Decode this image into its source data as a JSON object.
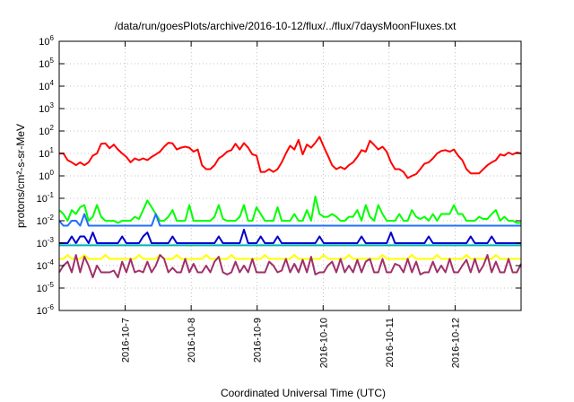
{
  "chart_data": {
    "type": "line",
    "title": "/data/run/goesPlots/archive/2016-10-12/flux/../flux/7daysMoonFluxes.txt",
    "xlabel": "Coordinated Universal Time (UTC)",
    "ylabel": "protons/cm²-s-sr-MeV",
    "yscale": "log",
    "ylim": [
      1e-06,
      1000000.0
    ],
    "xlim": [
      0,
      7
    ],
    "x_unit": "days from 2016-10-06 00:00 UTC",
    "grid": true,
    "legend": "none",
    "x_ticks": [
      {
        "x": 1,
        "label": "2016-10-7"
      },
      {
        "x": 2,
        "label": "2016-10-8"
      },
      {
        "x": 3,
        "label": "2016-10-9"
      },
      {
        "x": 4,
        "label": "2016-10-10"
      },
      {
        "x": 5,
        "label": "2016-10-11"
      },
      {
        "x": 6,
        "label": "2016-10-12"
      }
    ],
    "y_ticks": [
      {
        "v": 1e-06,
        "base": "10",
        "exp": "-6"
      },
      {
        "v": 1e-05,
        "base": "10",
        "exp": "-5"
      },
      {
        "v": 0.0001,
        "base": "10",
        "exp": "-4"
      },
      {
        "v": 0.001,
        "base": "10",
        "exp": "-3"
      },
      {
        "v": 0.01,
        "base": "10",
        "exp": "-2"
      },
      {
        "v": 0.1,
        "base": "10",
        "exp": "-1"
      },
      {
        "v": 1,
        "base": "10",
        "exp": "0"
      },
      {
        "v": 10,
        "base": "10",
        "exp": "1"
      },
      {
        "v": 100,
        "base": "10",
        "exp": "2"
      },
      {
        "v": 1000,
        "base": "10",
        "exp": "3"
      },
      {
        "v": 10000,
        "base": "10",
        "exp": "4"
      },
      {
        "v": 100000,
        "base": "10",
        "exp": "5"
      },
      {
        "v": 1000000,
        "base": "10",
        "exp": "6"
      }
    ],
    "series": [
      {
        "color": "#ff0000",
        "values": [
          10.0,
          10.0,
          5.0,
          4.0,
          3.0,
          4.0,
          3.0,
          4.0,
          8.0,
          10.0,
          27.0,
          28.0,
          17.0,
          25.0,
          15.0,
          10.0,
          7.0,
          4.0,
          6.0,
          5.0,
          6.0,
          5.0,
          7.0,
          9.0,
          12.0,
          20.0,
          30.0,
          28.0,
          15.0,
          18.0,
          20.0,
          18.0,
          12.0,
          15.0,
          3.0,
          2.0,
          2.0,
          3.0,
          6.0,
          8.0,
          12.0,
          14.0,
          27.0,
          15.0,
          29.0,
          18.0,
          9.0,
          8.0,
          1.5,
          1.5,
          2.0,
          1.5,
          2.0,
          4.0,
          10.0,
          22.0,
          15.0,
          40.0,
          9.0,
          25.0,
          18.0,
          30.0,
          55.0,
          20.0,
          8.0,
          3.0,
          2.0,
          2.5,
          2.0,
          3.0,
          4.0,
          7.0,
          14.0,
          12.0,
          37.0,
          24.0,
          15.0,
          20.0,
          12.0,
          4.0,
          2.0,
          2.0,
          1.5,
          0.8,
          1.0,
          1.2,
          2.0,
          3.5,
          4.0,
          6.0,
          10.0,
          13.0,
          14.0,
          12.0,
          15.0,
          8.0,
          5.0,
          2.0,
          1.3,
          1.3,
          1.3,
          2.0,
          3.0,
          4.0,
          5.0,
          9.0,
          8.0,
          11.0,
          9.0,
          11.0,
          10.0
        ]
      },
      {
        "color": "#00ff00",
        "values": [
          0.03,
          0.02,
          0.01,
          0.03,
          0.02,
          0.04,
          0.05,
          0.01,
          0.015,
          0.05,
          0.015,
          0.01,
          0.01,
          0.01,
          0.008,
          0.01,
          0.01,
          0.01,
          0.015,
          0.012,
          0.03,
          0.08,
          0.04,
          0.02,
          0.01,
          0.01,
          0.015,
          0.03,
          0.01,
          0.01,
          0.01,
          0.05,
          0.01,
          0.01,
          0.01,
          0.01,
          0.01,
          0.015,
          0.05,
          0.012,
          0.01,
          0.01,
          0.01,
          0.015,
          0.05,
          0.01,
          0.01,
          0.04,
          0.02,
          0.01,
          0.01,
          0.01,
          0.04,
          0.01,
          0.01,
          0.01,
          0.02,
          0.01,
          0.01,
          0.03,
          0.01,
          0.12,
          0.02,
          0.015,
          0.015,
          0.02,
          0.015,
          0.01,
          0.01,
          0.015,
          0.015,
          0.03,
          0.01,
          0.05,
          0.015,
          0.01,
          0.05,
          0.02,
          0.01,
          0.01,
          0.01,
          0.02,
          0.01,
          0.01,
          0.03,
          0.015,
          0.012,
          0.015,
          0.01,
          0.02,
          0.01,
          0.02,
          0.02,
          0.02,
          0.05,
          0.02,
          0.02,
          0.01,
          0.01,
          0.01,
          0.015,
          0.012,
          0.012,
          0.02,
          0.03,
          0.01,
          0.015,
          0.01,
          0.01,
          0.008,
          0.008
        ]
      },
      {
        "color": "#2070ff",
        "values": [
          0.01,
          0.006,
          0.006,
          0.01,
          0.01,
          0.006,
          0.02,
          0.006,
          0.006,
          0.006,
          0.006,
          0.006,
          0.006,
          0.006,
          0.006,
          0.006,
          0.006,
          0.006,
          0.006,
          0.006,
          0.006,
          0.006,
          0.006,
          0.02,
          0.006,
          0.006,
          0.006,
          0.006,
          0.006,
          0.006,
          0.006,
          0.006,
          0.006,
          0.006,
          0.006,
          0.006,
          0.006,
          0.006,
          0.006,
          0.006,
          0.006,
          0.006,
          0.006,
          0.006,
          0.006,
          0.006,
          0.006,
          0.006,
          0.006,
          0.006,
          0.006,
          0.006,
          0.006,
          0.006,
          0.006,
          0.006,
          0.006,
          0.006,
          0.006,
          0.006,
          0.006,
          0.006,
          0.006,
          0.006,
          0.006,
          0.006,
          0.006,
          0.006,
          0.006,
          0.006,
          0.006,
          0.006,
          0.006,
          0.006,
          0.006,
          0.006,
          0.006,
          0.006,
          0.006,
          0.006,
          0.006,
          0.006,
          0.006,
          0.006,
          0.006,
          0.006,
          0.006,
          0.006,
          0.006,
          0.006,
          0.006,
          0.006,
          0.006,
          0.006,
          0.006,
          0.006,
          0.006,
          0.006,
          0.006,
          0.006,
          0.006,
          0.006,
          0.006,
          0.006,
          0.006,
          0.006,
          0.006,
          0.006,
          0.006,
          0.006,
          0.006
        ]
      },
      {
        "color": "#0000cd",
        "values": [
          0.001,
          0.001,
          0.001,
          0.002,
          0.001,
          0.002,
          0.002,
          0.001,
          0.003,
          0.001,
          0.001,
          0.001,
          0.001,
          0.001,
          0.001,
          0.002,
          0.001,
          0.001,
          0.001,
          0.001,
          0.002,
          0.003,
          0.001,
          0.001,
          0.001,
          0.001,
          0.001,
          0.002,
          0.001,
          0.001,
          0.001,
          0.001,
          0.001,
          0.001,
          0.001,
          0.001,
          0.001,
          0.001,
          0.002,
          0.001,
          0.001,
          0.001,
          0.001,
          0.001,
          0.004,
          0.001,
          0.001,
          0.001,
          0.002,
          0.001,
          0.001,
          0.001,
          0.002,
          0.001,
          0.001,
          0.001,
          0.001,
          0.001,
          0.001,
          0.001,
          0.001,
          0.001,
          0.002,
          0.001,
          0.001,
          0.001,
          0.001,
          0.001,
          0.001,
          0.001,
          0.001,
          0.001,
          0.002,
          0.001,
          0.001,
          0.001,
          0.001,
          0.001,
          0.001,
          0.003,
          0.001,
          0.001,
          0.001,
          0.001,
          0.001,
          0.001,
          0.001,
          0.001,
          0.002,
          0.001,
          0.001,
          0.001,
          0.001,
          0.001,
          0.001,
          0.001,
          0.001,
          0.001,
          0.002,
          0.001,
          0.001,
          0.001,
          0.001,
          0.002,
          0.001,
          0.001,
          0.001,
          0.001,
          0.001,
          0.001,
          0.001
        ]
      },
      {
        "color": "#00b4b4",
        "values": [
          0.0008,
          0.0008,
          0.0008,
          0.0008,
          0.0008,
          0.0008,
          0.0008,
          0.0008,
          0.0008,
          0.0008,
          0.0008,
          0.0008,
          0.0008,
          0.0008,
          0.0008,
          0.0008,
          0.0008,
          0.0008,
          0.0008,
          0.0008,
          0.0008,
          0.0008,
          0.0008,
          0.0008,
          0.0008,
          0.0008,
          0.0008,
          0.0008,
          0.0008,
          0.0008,
          0.0008,
          0.0008,
          0.0008,
          0.0008,
          0.0008,
          0.0008,
          0.0008,
          0.0008,
          0.0008,
          0.0008,
          0.0008,
          0.0008,
          0.0008,
          0.0008,
          0.0008,
          0.0008,
          0.0008,
          0.0008,
          0.0008,
          0.0008,
          0.0008,
          0.0008,
          0.0008,
          0.0008,
          0.0008,
          0.0008,
          0.0008,
          0.0008,
          0.0008,
          0.0008,
          0.0008,
          0.0008,
          0.0008,
          0.0008,
          0.0008,
          0.0008,
          0.0008,
          0.0008,
          0.0008,
          0.0008,
          0.0008,
          0.0008,
          0.0008,
          0.0008,
          0.0008,
          0.0008,
          0.0008,
          0.0008,
          0.0008,
          0.0008,
          0.0008,
          0.0008,
          0.0008,
          0.0008,
          0.0008,
          0.0008,
          0.0008,
          0.0008,
          0.0008,
          0.0008,
          0.0008,
          0.0008,
          0.0008,
          0.0008,
          0.0008,
          0.0008,
          0.0008,
          0.0008,
          0.0008,
          0.0008,
          0.0008,
          0.0008,
          0.0008,
          0.0008,
          0.0008,
          0.0008,
          0.0008,
          0.0008,
          0.0008,
          0.0008,
          0.0008
        ]
      },
      {
        "color": "#ffff00",
        "values": [
          0.0002,
          0.0002,
          0.0003,
          0.0002,
          0.0002,
          0.0002,
          0.0003,
          0.0002,
          0.0002,
          0.0002,
          0.0002,
          0.0003,
          0.0002,
          0.0002,
          0.0002,
          0.0002,
          0.0002,
          0.0002,
          0.0002,
          0.0003,
          0.0002,
          0.0002,
          0.0002,
          0.0002,
          0.0003,
          0.0002,
          0.0002,
          0.0002,
          0.0003,
          0.0002,
          0.0002,
          0.0002,
          0.0002,
          0.0002,
          0.0002,
          0.0003,
          0.0002,
          0.0002,
          0.0002,
          0.0002,
          0.0002,
          0.0003,
          0.0002,
          0.0002,
          0.0002,
          0.0002,
          0.0002,
          0.0002,
          0.0002,
          0.0003,
          0.0002,
          0.0002,
          0.0002,
          0.0002,
          0.0002,
          0.0002,
          0.0003,
          0.0002,
          0.0002,
          0.0002,
          0.0002,
          0.0002,
          0.0002,
          0.0003,
          0.0002,
          0.0002,
          0.0002,
          0.0002,
          0.0002,
          0.0003,
          0.0002,
          0.0002,
          0.0002,
          0.0002,
          0.0002,
          0.0002,
          0.0002,
          0.0003,
          0.0002,
          0.0002,
          0.0002,
          0.0002,
          0.0002,
          0.0002,
          0.0003,
          0.0002,
          0.0002,
          0.0002,
          0.0002,
          0.0002,
          0.0003,
          0.0002,
          0.0002,
          0.0002,
          0.0002,
          0.0002,
          0.0002,
          0.0003,
          0.0002,
          0.0002,
          0.0002,
          0.0002,
          0.0002,
          0.0002,
          0.0003,
          0.0002,
          0.0002,
          0.0002,
          0.0002,
          0.0002,
          0.0002
        ]
      },
      {
        "color": "#a0306a",
        "values": [
          5e-05,
          0.0001,
          0.00015,
          5e-05,
          0.0003,
          5e-05,
          0.00025,
          0.0001,
          3e-05,
          0.0001,
          5e-05,
          5e-05,
          5e-05,
          6e-05,
          3e-05,
          0.00015,
          5e-05,
          0.0002,
          5e-05,
          6e-05,
          5e-05,
          0.00015,
          5e-05,
          0.0001,
          0.0003,
          0.0002,
          5e-05,
          8e-05,
          5e-05,
          5e-05,
          0.0002,
          5e-05,
          0.00012,
          5e-05,
          5e-05,
          0.0001,
          5e-05,
          0.00015,
          0.00025,
          5e-05,
          4e-05,
          5e-05,
          0.00015,
          5e-05,
          0.0001,
          5e-05,
          0.0002,
          5e-05,
          5e-05,
          5e-05,
          0.00015,
          0.0001,
          5e-05,
          6e-05,
          0.0002,
          5e-05,
          0.00012,
          5e-05,
          0.00018,
          5e-05,
          0.00025,
          4e-05,
          5e-05,
          5e-05,
          0.0001,
          0.00015,
          5e-05,
          0.0002,
          5e-05,
          0.0001,
          5e-05,
          0.00018,
          5e-05,
          0.00015,
          0.0002,
          5e-05,
          5e-05,
          0.0002,
          5e-05,
          5e-05,
          0.00012,
          0.0001,
          5e-05,
          0.0002,
          5e-05,
          0.00015,
          4e-05,
          5e-05,
          5e-05,
          0.00015,
          5e-05,
          0.0001,
          5e-05,
          0.0002,
          5e-05,
          5e-05,
          0.0001,
          0.00018,
          5e-05,
          0.0002,
          5e-05,
          0.0001,
          0.0003,
          5e-05,
          0.00015,
          5e-05,
          5e-05,
          0.0002,
          5e-05,
          5e-05,
          0.00012
        ]
      }
    ]
  }
}
